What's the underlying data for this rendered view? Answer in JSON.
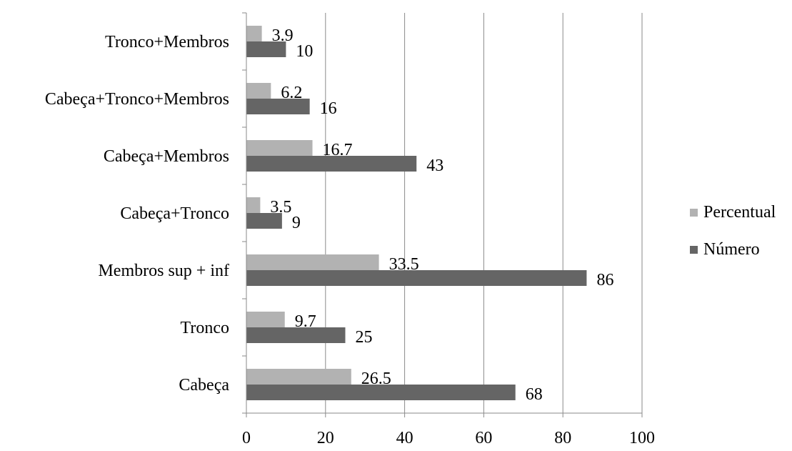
{
  "chart_data": {
    "type": "bar",
    "orientation": "horizontal",
    "title": "",
    "xlabel": "",
    "ylabel": "",
    "xlim": [
      0,
      100
    ],
    "xticks": [
      0,
      20,
      40,
      60,
      80,
      100
    ],
    "grid": "vertical",
    "legend_position": "right",
    "categories": [
      "Tronco+Membros",
      "Cabeça+Tronco+Membros",
      "Cabeça+Membros",
      "Cabeça+Tronco",
      "Membros sup + inf",
      "Tronco",
      "Cabeça"
    ],
    "series": [
      {
        "name": "Percentual",
        "color": "#b2b2b2",
        "values": [
          3.9,
          6.2,
          16.7,
          3.5,
          33.5,
          9.7,
          26.5
        ]
      },
      {
        "name": "Número",
        "color": "#656565",
        "values": [
          10,
          16,
          43,
          9,
          86,
          25,
          68
        ]
      }
    ]
  }
}
